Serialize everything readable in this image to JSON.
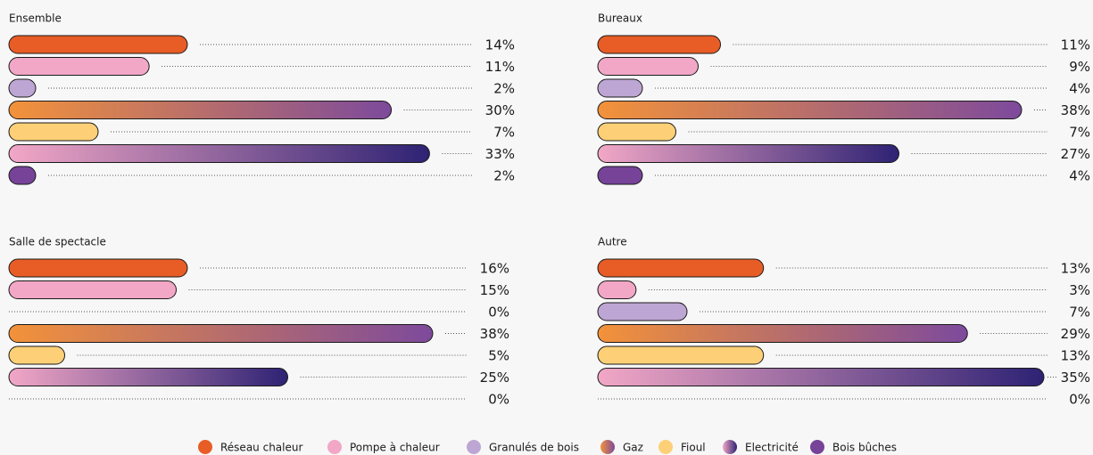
{
  "legend": [
    {
      "name": "Réseau chaleur",
      "color": [
        "#e85d26"
      ]
    },
    {
      "name": "Pompe à chaleur",
      "color": [
        "#f2a7c6"
      ]
    },
    {
      "name": "Granulés de bois",
      "color": [
        "#bda6d3"
      ]
    },
    {
      "name": "Gaz",
      "color": [
        "#f3923a",
        "#7d4a9c"
      ]
    },
    {
      "name": "Fioul",
      "color": [
        "#fdd077"
      ]
    },
    {
      "name": "Electricité",
      "color": [
        "#f2a7c6",
        "#2e2274"
      ]
    },
    {
      "name": "Bois bûches",
      "color": [
        "#764399"
      ]
    }
  ],
  "chart_data": [
    {
      "type": "bar",
      "orientation": "horizontal",
      "title": "Ensemble",
      "xlim": [
        0,
        35
      ],
      "values": [
        14,
        11,
        2,
        30,
        7,
        33,
        2
      ],
      "value_labels": [
        "14%",
        "11%",
        "2%",
        "30%",
        "7%",
        "33%",
        "2%"
      ]
    },
    {
      "type": "bar",
      "orientation": "horizontal",
      "title": "Bureaux",
      "xlim": [
        0,
        40
      ],
      "values": [
        11,
        9,
        4,
        38,
        7,
        27,
        4
      ],
      "value_labels": [
        "11%",
        "9%",
        "4%",
        "38%",
        "7%",
        "27%",
        "4%"
      ]
    },
    {
      "type": "bar",
      "orientation": "horizontal",
      "title": "Salle de spectacle",
      "xlim": [
        0,
        40
      ],
      "values": [
        16,
        15,
        0,
        38,
        5,
        25,
        0
      ],
      "value_labels": [
        "16%",
        "15%",
        "0%",
        "38%",
        "5%",
        "25%",
        "0%"
      ]
    },
    {
      "type": "bar",
      "orientation": "horizontal",
      "title": "Autre",
      "xlim": [
        0,
        35
      ],
      "values": [
        13,
        3,
        7,
        29,
        13,
        35,
        0
      ],
      "value_labels": [
        "13%",
        "3%",
        "7%",
        "29%",
        "13%",
        "35%",
        "0%"
      ]
    }
  ]
}
